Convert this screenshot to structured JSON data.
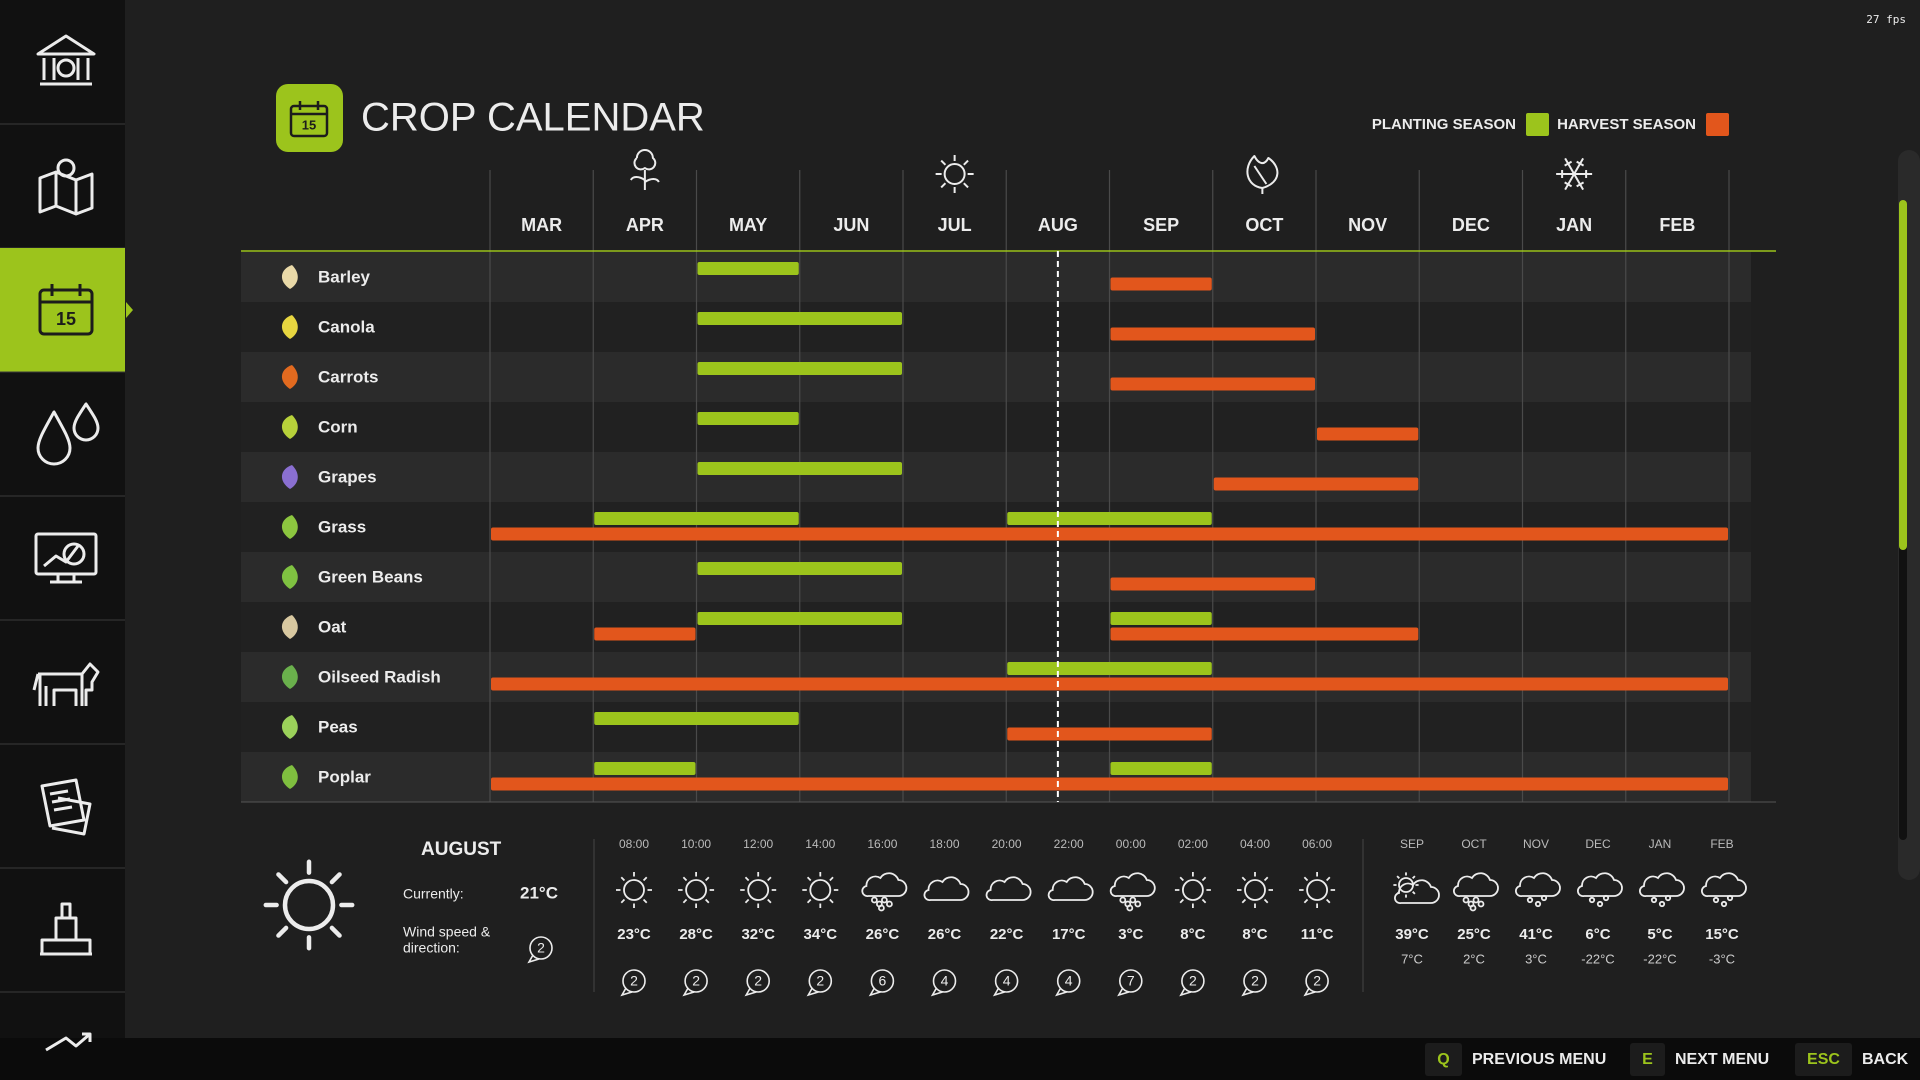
{
  "fps": "27 fps",
  "header": {
    "title": "CROP CALENDAR",
    "icon_day": "15",
    "legend": {
      "planting": {
        "label": "PLANTING SEASON",
        "color": "#9cc41c"
      },
      "harvest": {
        "label": "HARVEST SEASON",
        "color": "#e2561c"
      }
    }
  },
  "calendar": {
    "months": [
      "MAR",
      "APR",
      "MAY",
      "JUN",
      "JUL",
      "AUG",
      "SEP",
      "OCT",
      "NOV",
      "DEC",
      "JAN",
      "FEB"
    ],
    "crops": [
      {
        "name": "Barley",
        "planting": [
          [
            "MAY",
            "MAY"
          ]
        ],
        "harvest": [
          [
            "SEP",
            "SEP"
          ]
        ]
      },
      {
        "name": "Canola",
        "planting": [
          [
            "MAY",
            "JUN"
          ]
        ],
        "harvest": [
          [
            "SEP",
            "OCT"
          ]
        ]
      },
      {
        "name": "Carrots",
        "planting": [
          [
            "MAY",
            "JUN"
          ]
        ],
        "harvest": [
          [
            "SEP",
            "OCT"
          ]
        ]
      },
      {
        "name": "Corn",
        "planting": [
          [
            "MAY",
            "MAY"
          ]
        ],
        "harvest": [
          [
            "NOV",
            "NOV"
          ]
        ]
      },
      {
        "name": "Grapes",
        "planting": [
          [
            "MAY",
            "JUN"
          ]
        ],
        "harvest": [
          [
            "OCT",
            "NOV"
          ]
        ]
      },
      {
        "name": "Grass",
        "planting": [
          [
            "APR",
            "MAY"
          ],
          [
            "AUG",
            "SEP"
          ]
        ],
        "harvest": [
          [
            "MAR",
            "FEB"
          ]
        ]
      },
      {
        "name": "Green Beans",
        "planting": [
          [
            "MAY",
            "JUN"
          ]
        ],
        "harvest": [
          [
            "SEP",
            "OCT"
          ]
        ]
      },
      {
        "name": "Oat",
        "planting": [
          [
            "MAY",
            "JUN"
          ],
          [
            "SEP",
            "SEP"
          ]
        ],
        "harvest": [
          [
            "APR",
            "APR"
          ],
          [
            "SEP",
            "NOV"
          ]
        ]
      },
      {
        "name": "Oilseed Radish",
        "planting": [
          [
            "AUG",
            "SEP"
          ]
        ],
        "harvest": [
          [
            "MAR",
            "FEB"
          ]
        ]
      },
      {
        "name": "Peas",
        "planting": [
          [
            "APR",
            "MAY"
          ]
        ],
        "harvest": [
          [
            "AUG",
            "SEP"
          ]
        ]
      },
      {
        "name": "Poplar",
        "planting": [
          [
            "APR",
            "APR"
          ],
          [
            "SEP",
            "SEP"
          ]
        ],
        "harvest": [
          [
            "MAR",
            "FEB"
          ]
        ]
      }
    ]
  },
  "weather": {
    "month": "AUGUST",
    "currently_label": "Currently:",
    "current_temp": "21°C",
    "wind_label": [
      "Wind speed &",
      "direction:"
    ],
    "current_wind": 2,
    "hourly": [
      {
        "time": "08:00",
        "icon": "sun",
        "temp": "23°C",
        "wind": 2
      },
      {
        "time": "10:00",
        "icon": "sun",
        "temp": "28°C",
        "wind": 2
      },
      {
        "time": "12:00",
        "icon": "sun",
        "temp": "32°C",
        "wind": 2
      },
      {
        "time": "14:00",
        "icon": "sun",
        "temp": "34°C",
        "wind": 2
      },
      {
        "time": "16:00",
        "icon": "rain",
        "temp": "26°C",
        "wind": 6
      },
      {
        "time": "18:00",
        "icon": "cloud",
        "temp": "26°C",
        "wind": 4
      },
      {
        "time": "20:00",
        "icon": "cloud",
        "temp": "22°C",
        "wind": 4
      },
      {
        "time": "22:00",
        "icon": "cloud",
        "temp": "17°C",
        "wind": 4
      },
      {
        "time": "00:00",
        "icon": "rain",
        "temp": "3°C",
        "wind": 7
      },
      {
        "time": "02:00",
        "icon": "sun",
        "temp": "8°C",
        "wind": 2
      },
      {
        "time": "04:00",
        "icon": "sun",
        "temp": "8°C",
        "wind": 2
      },
      {
        "time": "06:00",
        "icon": "sun",
        "temp": "11°C",
        "wind": 2
      }
    ],
    "monthly": [
      {
        "month": "SEP",
        "icon": "partly-cloudy",
        "high": "39°C",
        "low": "7°C"
      },
      {
        "month": "OCT",
        "icon": "rain",
        "high": "25°C",
        "low": "2°C"
      },
      {
        "month": "NOV",
        "icon": "snow",
        "high": "41°C",
        "low": "3°C"
      },
      {
        "month": "DEC",
        "icon": "snow",
        "high": "6°C",
        "low": "-22°C"
      },
      {
        "month": "JAN",
        "icon": "snow",
        "high": "5°C",
        "low": "-22°C"
      },
      {
        "month": "FEB",
        "icon": "snow",
        "high": "15°C",
        "low": "-3°C"
      }
    ]
  },
  "footer": [
    {
      "key": "Q",
      "label": "PREVIOUS MENU"
    },
    {
      "key": "E",
      "label": "NEXT MENU"
    },
    {
      "key": "ESC",
      "label": "BACK"
    }
  ]
}
